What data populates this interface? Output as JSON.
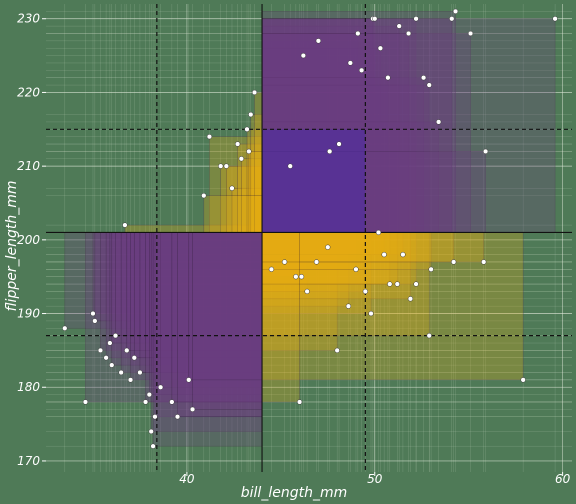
{
  "chart_data": {
    "type": "scatter",
    "title": "",
    "xlabel": "bill_length_mm",
    "ylabel": "flipper_length_mm",
    "xlim": [
      32.5,
      60.5
    ],
    "ylim": [
      168.5,
      232
    ],
    "x_ticks": [
      "40",
      "50",
      "60"
    ],
    "y_ticks": [
      "170",
      "180",
      "190",
      "200",
      "210",
      "220",
      "230"
    ],
    "grid": true,
    "legend": "none",
    "center": {
      "x": 44,
      "y": 201
    },
    "quartile_lines": {
      "x": [
        38.4,
        49.5
      ],
      "y": [
        187,
        215
      ]
    },
    "colors": {
      "background": "#4f7a57",
      "purple": "#6a3d82",
      "gold": "#e5ac12",
      "blue": "#4a2aa6",
      "points": "#ffffff",
      "text": "#ffffff"
    },
    "points": [
      [
        33.5,
        188
      ],
      [
        34.6,
        178
      ],
      [
        35.0,
        190
      ],
      [
        35.1,
        189
      ],
      [
        35.4,
        185
      ],
      [
        35.7,
        184
      ],
      [
        35.9,
        186
      ],
      [
        36.0,
        183
      ],
      [
        36.2,
        187
      ],
      [
        36.5,
        182
      ],
      [
        36.7,
        202
      ],
      [
        36.8,
        185
      ],
      [
        37.0,
        181
      ],
      [
        37.2,
        184
      ],
      [
        37.5,
        182
      ],
      [
        37.8,
        178
      ],
      [
        38.0,
        179
      ],
      [
        38.3,
        176
      ],
      [
        38.6,
        180
      ],
      [
        38.1,
        174
      ],
      [
        38.2,
        172
      ],
      [
        39.2,
        178
      ],
      [
        39.5,
        176
      ],
      [
        40.1,
        181
      ],
      [
        40.3,
        177
      ],
      [
        41.2,
        214
      ],
      [
        41.8,
        210
      ],
      [
        42.1,
        210
      ],
      [
        42.4,
        207
      ],
      [
        42.7,
        213
      ],
      [
        42.9,
        211
      ],
      [
        43.2,
        215
      ],
      [
        43.4,
        217
      ],
      [
        43.6,
        220
      ],
      [
        43.3,
        212
      ],
      [
        40.9,
        206
      ],
      [
        44.5,
        196
      ],
      [
        45.2,
        197
      ],
      [
        45.8,
        195
      ],
      [
        46.1,
        195
      ],
      [
        46.4,
        193
      ],
      [
        46.9,
        197
      ],
      [
        47.5,
        199
      ],
      [
        48.0,
        185
      ],
      [
        48.6,
        191
      ],
      [
        49.0,
        196
      ],
      [
        49.5,
        193
      ],
      [
        49.8,
        190
      ],
      [
        50.2,
        201
      ],
      [
        50.5,
        198
      ],
      [
        50.8,
        194
      ],
      [
        51.2,
        194
      ],
      [
        51.5,
        198
      ],
      [
        51.9,
        192
      ],
      [
        52.2,
        194
      ],
      [
        52.9,
        187
      ],
      [
        53.0,
        196
      ],
      [
        54.2,
        197
      ],
      [
        55.8,
        197
      ],
      [
        57.9,
        181
      ],
      [
        46.0,
        178
      ],
      [
        45.5,
        210
      ],
      [
        46.2,
        225
      ],
      [
        47.0,
        227
      ],
      [
        47.6,
        212
      ],
      [
        48.1,
        213
      ],
      [
        48.7,
        224
      ],
      [
        49.1,
        228
      ],
      [
        49.3,
        223
      ],
      [
        49.9,
        230
      ],
      [
        50.0,
        230
      ],
      [
        50.3,
        226
      ],
      [
        50.7,
        222
      ],
      [
        51.3,
        229
      ],
      [
        51.8,
        228
      ],
      [
        52.2,
        230
      ],
      [
        52.6,
        222
      ],
      [
        52.9,
        221
      ],
      [
        53.4,
        216
      ],
      [
        54.1,
        230
      ],
      [
        54.3,
        231
      ],
      [
        55.1,
        228
      ],
      [
        55.9,
        212
      ],
      [
        59.6,
        230
      ]
    ]
  }
}
